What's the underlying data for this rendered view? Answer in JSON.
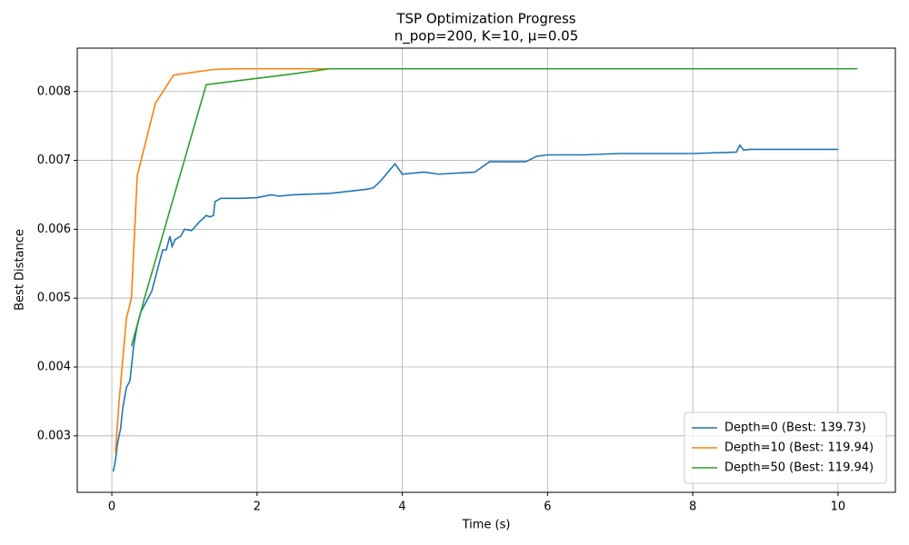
{
  "chart_data": {
    "type": "line",
    "title": "TSP Optimization Progress",
    "subtitle": "n_pop=200, K=10, μ=0.05",
    "x_label": "Time (s)",
    "y_label": "Best Distance",
    "xlim": [
      -0.476,
      10.79
    ],
    "ylim": [
      0.00218,
      0.00863
    ],
    "xticks": [
      0,
      2,
      4,
      6,
      8,
      10
    ],
    "yticks": [
      0.003,
      0.004,
      0.005,
      0.006,
      0.007,
      0.008
    ],
    "grid": true,
    "legend": "lower right",
    "series": [
      {
        "name": "Depth=0 (Best: 139.73)",
        "color": "#1f77b4",
        "x": [
          0.02,
          0.05,
          0.08,
          0.12,
          0.15,
          0.2,
          0.25,
          0.3,
          0.35,
          0.4,
          0.45,
          0.5,
          0.55,
          0.6,
          0.65,
          0.7,
          0.75,
          0.8,
          0.83,
          0.87,
          0.95,
          1.0,
          1.1,
          1.2,
          1.3,
          1.35,
          1.4,
          1.42,
          1.5,
          1.7,
          1.8,
          2.0,
          2.2,
          2.3,
          2.5,
          3.0,
          3.5,
          3.6,
          3.7,
          3.9,
          4.0,
          4.3,
          4.5,
          5.0,
          5.2,
          5.7,
          5.85,
          6.0,
          6.5,
          7.0,
          7.5,
          8.0,
          8.6,
          8.65,
          8.7,
          8.8,
          10.0
        ],
        "values": [
          0.00248,
          0.00265,
          0.0029,
          0.0031,
          0.0034,
          0.0037,
          0.0038,
          0.0043,
          0.0046,
          0.0048,
          0.0049,
          0.005,
          0.0051,
          0.0053,
          0.0055,
          0.0057,
          0.0057,
          0.0059,
          0.00575,
          0.00585,
          0.0059,
          0.006,
          0.00598,
          0.0061,
          0.0062,
          0.00618,
          0.0062,
          0.0064,
          0.00645,
          0.00645,
          0.00645,
          0.00646,
          0.0065,
          0.00648,
          0.0065,
          0.00652,
          0.00658,
          0.0066,
          0.0067,
          0.00695,
          0.0068,
          0.00683,
          0.0068,
          0.00683,
          0.00698,
          0.00698,
          0.00706,
          0.00708,
          0.00708,
          0.0071,
          0.0071,
          0.0071,
          0.00712,
          0.00722,
          0.00715,
          0.00716,
          0.00716
        ]
      },
      {
        "name": "Depth=10 (Best: 119.94)",
        "color": "#ff7f0e",
        "x": [
          0.05,
          0.1,
          0.2,
          0.27,
          0.35,
          0.6,
          0.85,
          1.4,
          1.7,
          3.0
        ],
        "values": [
          0.00275,
          0.0035,
          0.0047,
          0.005,
          0.00678,
          0.00783,
          0.00824,
          0.00832,
          0.00833,
          0.00833
        ]
      },
      {
        "name": "Depth=50 (Best: 119.94)",
        "color": "#2ca02c",
        "x": [
          0.27,
          0.45,
          1.3,
          2.45,
          3.0,
          10.27
        ],
        "values": [
          0.0043,
          0.005,
          0.0081,
          0.00825,
          0.00833,
          0.00833
        ]
      }
    ]
  }
}
